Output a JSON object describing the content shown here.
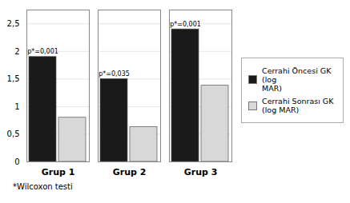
{
  "chart_data": {
    "type": "bar",
    "categories": [
      "Grup 1",
      "Grup 2",
      "Grup 3"
    ],
    "series": [
      {
        "name": "Cerrahi Öncesi GK (log\nMAR)",
        "color": "#1a1a1a",
        "values": [
          1.9,
          1.5,
          2.4
        ]
      },
      {
        "name": "Cerrahi Sonrası GK\n(log MAR)",
        "color": "#d8d8d8",
        "values": [
          0.8,
          0.63,
          1.38
        ]
      }
    ],
    "annotations": [
      "p*=0,001",
      "p*=0,035",
      "p*=0,001"
    ],
    "caption": "*Wilcoxon testi",
    "ylim": [
      0,
      2.75
    ],
    "yticks": [
      0,
      {
        "value": 0.5,
        "label": "0,5"
      },
      1,
      {
        "value": 1.5,
        "label": "1,5"
      },
      2,
      {
        "value": 2.5,
        "label": "2,5"
      }
    ],
    "grid": true,
    "legend": "right"
  }
}
